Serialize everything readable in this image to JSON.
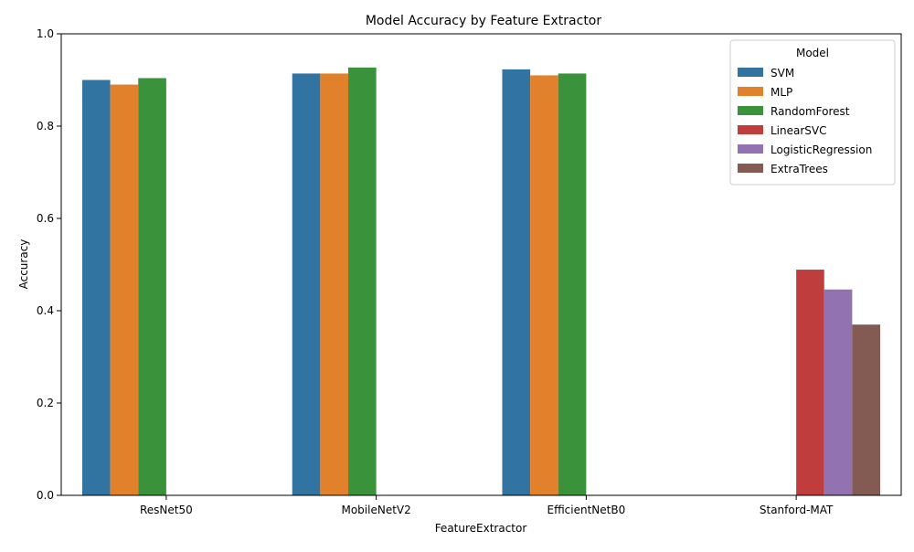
{
  "chart_data": {
    "type": "bar",
    "title": "Model Accuracy by Feature Extractor",
    "xlabel": "FeatureExtractor",
    "ylabel": "Accuracy",
    "ylim": [
      0,
      1.0
    ],
    "yticks": [
      "0.0",
      "0.2",
      "0.4",
      "0.6",
      "0.8",
      "1.0"
    ],
    "categories": [
      "ResNet50",
      "MobileNetV2",
      "EfficientNetB0",
      "Stanford-MAT"
    ],
    "legend": {
      "title": "Model",
      "placement": "top-right"
    },
    "grid": false,
    "series": [
      {
        "name": "SVM",
        "color": "#3274a1",
        "values": [
          0.9,
          0.914,
          0.923,
          null
        ]
      },
      {
        "name": "MLP",
        "color": "#e1812c",
        "values": [
          0.89,
          0.914,
          0.91,
          null
        ]
      },
      {
        "name": "RandomForest",
        "color": "#3a923a",
        "values": [
          0.904,
          0.927,
          0.914,
          null
        ]
      },
      {
        "name": "LinearSVC",
        "color": "#c03d3e",
        "values": [
          null,
          null,
          null,
          0.489
        ]
      },
      {
        "name": "LogisticRegression",
        "color": "#9372b2",
        "values": [
          null,
          null,
          null,
          0.446
        ]
      },
      {
        "name": "ExtraTrees",
        "color": "#845b53",
        "values": [
          null,
          null,
          null,
          0.37
        ]
      }
    ]
  }
}
